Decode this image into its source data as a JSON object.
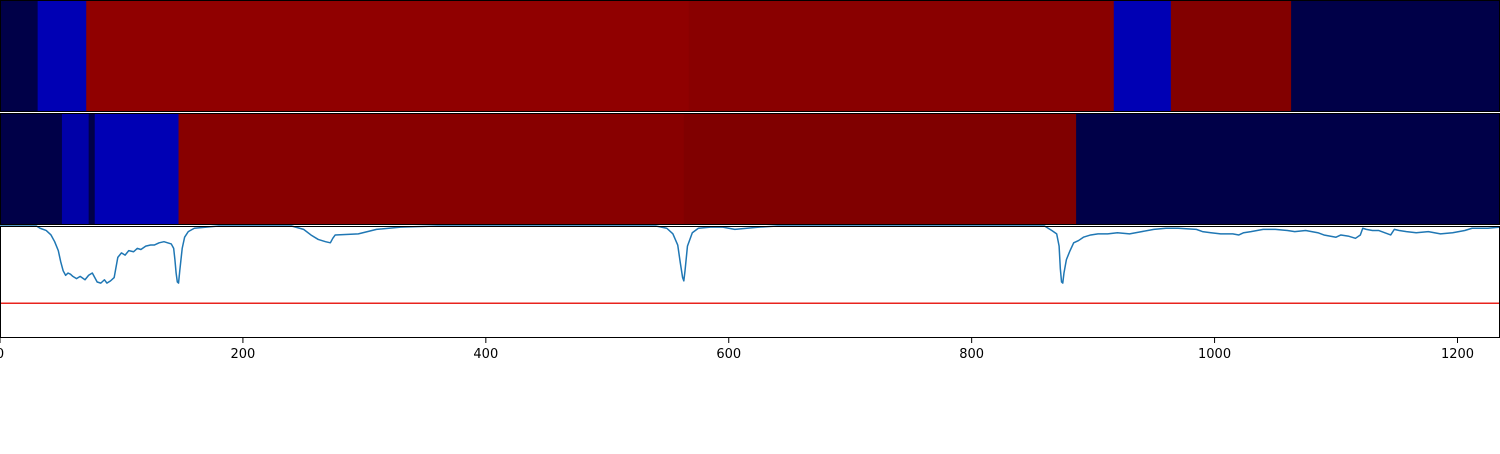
{
  "chart_data": [
    {
      "type": "heatmap",
      "xlim": [
        0,
        1235
      ],
      "segments": [
        {
          "x0": 0,
          "x1": 31,
          "color": "#000048"
        },
        {
          "x0": 31,
          "x1": 71,
          "color": "#0000b4"
        },
        {
          "x0": 71,
          "x1": 567,
          "color": "#900000"
        },
        {
          "x0": 567,
          "x1": 917,
          "color": "#890000"
        },
        {
          "x0": 917,
          "x1": 964,
          "color": "#0000b4"
        },
        {
          "x0": 964,
          "x1": 1063,
          "color": "#820000"
        },
        {
          "x0": 1063,
          "x1": 1235,
          "color": "#000048"
        }
      ]
    },
    {
      "type": "heatmap",
      "xlim": [
        0,
        1235
      ],
      "segments": [
        {
          "x0": 0,
          "x1": 51,
          "color": "#000048"
        },
        {
          "x0": 51,
          "x1": 73,
          "color": "#0000a8"
        },
        {
          "x0": 73,
          "x1": 78,
          "color": "#000048"
        },
        {
          "x0": 78,
          "x1": 147,
          "color": "#0000b4"
        },
        {
          "x0": 147,
          "x1": 563,
          "color": "#880000"
        },
        {
          "x0": 563,
          "x1": 886,
          "color": "#800000"
        },
        {
          "x0": 886,
          "x1": 1235,
          "color": "#000048"
        }
      ]
    },
    {
      "type": "line",
      "xlim": [
        0,
        1235
      ],
      "ylim": [
        0,
        1
      ],
      "xticks": [
        0,
        200,
        400,
        600,
        800,
        1000,
        1200
      ],
      "xtick_labels": [
        "0",
        "200",
        "400",
        "600",
        "800",
        "1000",
        "1200"
      ],
      "threshold": 0.31,
      "colors": {
        "line": "#1f77b4",
        "threshold": "#e8231d"
      },
      "series": [
        {
          "points": [
            [
              0,
              1.0
            ],
            [
              30,
              1.0
            ],
            [
              33,
              0.98
            ],
            [
              38,
              0.96
            ],
            [
              42,
              0.92
            ],
            [
              45,
              0.86
            ],
            [
              48,
              0.78
            ],
            [
              50,
              0.68
            ],
            [
              52,
              0.6
            ],
            [
              54,
              0.56
            ],
            [
              56,
              0.58
            ],
            [
              58,
              0.57
            ],
            [
              60,
              0.55
            ],
            [
              63,
              0.53
            ],
            [
              66,
              0.55
            ],
            [
              70,
              0.52
            ],
            [
              73,
              0.56
            ],
            [
              76,
              0.58
            ],
            [
              78,
              0.54
            ],
            [
              80,
              0.5
            ],
            [
              83,
              0.49
            ],
            [
              86,
              0.52
            ],
            [
              88,
              0.49
            ],
            [
              91,
              0.51
            ],
            [
              94,
              0.54
            ],
            [
              97,
              0.72
            ],
            [
              100,
              0.76
            ],
            [
              103,
              0.74
            ],
            [
              106,
              0.78
            ],
            [
              110,
              0.77
            ],
            [
              113,
              0.8
            ],
            [
              116,
              0.79
            ],
            [
              120,
              0.82
            ],
            [
              124,
              0.83
            ],
            [
              127,
              0.83
            ],
            [
              131,
              0.85
            ],
            [
              135,
              0.86
            ],
            [
              138,
              0.85
            ],
            [
              141,
              0.84
            ],
            [
              143,
              0.8
            ],
            [
              144,
              0.7
            ],
            [
              145,
              0.58
            ],
            [
              146,
              0.5
            ],
            [
              147,
              0.49
            ],
            [
              148,
              0.6
            ],
            [
              150,
              0.8
            ],
            [
              152,
              0.9
            ],
            [
              155,
              0.95
            ],
            [
              160,
              0.98
            ],
            [
              170,
              0.99
            ],
            [
              180,
              1.0
            ],
            [
              240,
              1.0
            ],
            [
              250,
              0.97
            ],
            [
              256,
              0.92
            ],
            [
              262,
              0.88
            ],
            [
              268,
              0.86
            ],
            [
              272,
              0.85
            ],
            [
              274,
              0.89
            ],
            [
              276,
              0.92
            ],
            [
              295,
              0.93
            ],
            [
              310,
              0.97
            ],
            [
              330,
              0.99
            ],
            [
              360,
              1.0
            ],
            [
              540,
              1.0
            ],
            [
              549,
              0.98
            ],
            [
              554,
              0.93
            ],
            [
              558,
              0.83
            ],
            [
              560,
              0.68
            ],
            [
              562,
              0.54
            ],
            [
              563,
              0.51
            ],
            [
              564,
              0.6
            ],
            [
              566,
              0.82
            ],
            [
              570,
              0.94
            ],
            [
              575,
              0.98
            ],
            [
              585,
              0.99
            ],
            [
              595,
              0.99
            ],
            [
              605,
              0.97
            ],
            [
              615,
              0.98
            ],
            [
              625,
              0.99
            ],
            [
              640,
              1.0
            ],
            [
              660,
              1.0
            ],
            [
              860,
              1.0
            ],
            [
              866,
              0.96
            ],
            [
              870,
              0.93
            ],
            [
              872,
              0.82
            ],
            [
              873,
              0.62
            ],
            [
              874,
              0.5
            ],
            [
              875,
              0.49
            ],
            [
              876,
              0.58
            ],
            [
              878,
              0.7
            ],
            [
              881,
              0.78
            ],
            [
              884,
              0.85
            ],
            [
              888,
              0.87
            ],
            [
              892,
              0.9
            ],
            [
              898,
              0.92
            ],
            [
              904,
              0.93
            ],
            [
              912,
              0.93
            ],
            [
              920,
              0.94
            ],
            [
              930,
              0.93
            ],
            [
              940,
              0.95
            ],
            [
              950,
              0.97
            ],
            [
              960,
              0.98
            ],
            [
              970,
              0.98
            ],
            [
              985,
              0.97
            ],
            [
              990,
              0.95
            ],
            [
              997,
              0.94
            ],
            [
              1005,
              0.93
            ],
            [
              1015,
              0.93
            ],
            [
              1020,
              0.92
            ],
            [
              1024,
              0.94
            ],
            [
              1030,
              0.95
            ],
            [
              1035,
              0.96
            ],
            [
              1040,
              0.97
            ],
            [
              1050,
              0.97
            ],
            [
              1060,
              0.96
            ],
            [
              1066,
              0.95
            ],
            [
              1075,
              0.96
            ],
            [
              1085,
              0.94
            ],
            [
              1090,
              0.92
            ],
            [
              1095,
              0.91
            ],
            [
              1100,
              0.9
            ],
            [
              1104,
              0.92
            ],
            [
              1110,
              0.91
            ],
            [
              1116,
              0.89
            ],
            [
              1120,
              0.92
            ],
            [
              1122,
              0.98
            ],
            [
              1125,
              0.97
            ],
            [
              1130,
              0.96
            ],
            [
              1135,
              0.96
            ],
            [
              1140,
              0.94
            ],
            [
              1145,
              0.92
            ],
            [
              1148,
              0.97
            ],
            [
              1152,
              0.96
            ],
            [
              1158,
              0.95
            ],
            [
              1166,
              0.94
            ],
            [
              1176,
              0.95
            ],
            [
              1186,
              0.93
            ],
            [
              1196,
              0.94
            ],
            [
              1206,
              0.96
            ],
            [
              1212,
              0.98
            ],
            [
              1218,
              0.98
            ],
            [
              1225,
              0.98
            ],
            [
              1235,
              0.99
            ]
          ]
        }
      ]
    }
  ]
}
